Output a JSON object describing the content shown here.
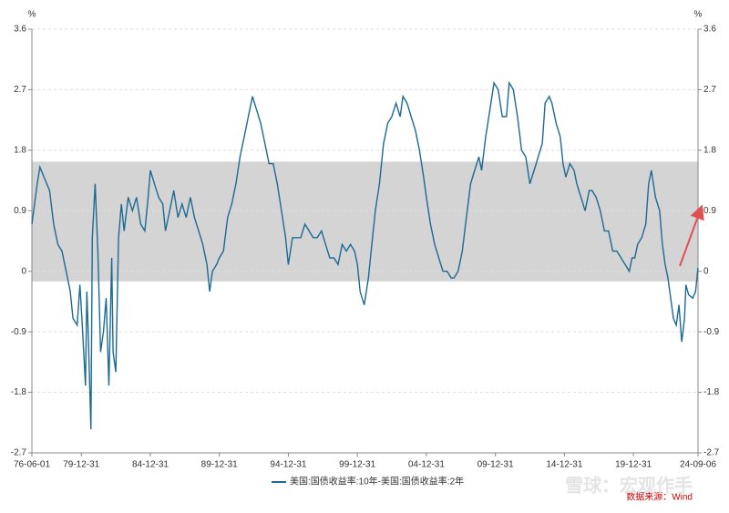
{
  "chart_data": {
    "type": "line",
    "y_unit": "%",
    "legend": "bottom",
    "source": "数据来源：Wind",
    "watermark": "雪球：宏观作手",
    "xlim": [
      1976.42,
      2024.68
    ],
    "xticks": [
      {
        "value": 1976.42,
        "label": "76-06-01"
      },
      {
        "value": 1980.0,
        "label": "79-12-31"
      },
      {
        "value": 1985.0,
        "label": "84-12-31"
      },
      {
        "value": 1990.0,
        "label": "89-12-31"
      },
      {
        "value": 1995.0,
        "label": "94-12-31"
      },
      {
        "value": 2000.0,
        "label": "99-12-31"
      },
      {
        "value": 2005.0,
        "label": "04-12-31"
      },
      {
        "value": 2010.0,
        "label": "09-12-31"
      },
      {
        "value": 2015.0,
        "label": "14-12-31"
      },
      {
        "value": 2020.0,
        "label": "19-12-31"
      },
      {
        "value": 2024.68,
        "label": "24-09-06"
      }
    ],
    "ylim": [
      -2.7,
      3.6
    ],
    "yticks": [
      3.6,
      2.7,
      1.8,
      0.9,
      0,
      -0.9,
      -1.8,
      -2.7
    ],
    "grid": true,
    "band": [
      -0.15,
      1.63
    ],
    "band_color": "#d4d4d4",
    "x": [
      1976.42,
      1976.8,
      1977.0,
      1977.3,
      1977.7,
      1978.0,
      1978.3,
      1978.6,
      1978.9,
      1979.2,
      1979.4,
      1979.7,
      1979.9,
      1980.1,
      1980.3,
      1980.4,
      1980.5,
      1980.7,
      1980.8,
      1981.0,
      1981.2,
      1981.4,
      1981.6,
      1981.8,
      1982.0,
      1982.2,
      1982.3,
      1982.5,
      1982.7,
      1982.9,
      1983.1,
      1983.4,
      1983.7,
      1984.0,
      1984.3,
      1984.6,
      1984.8,
      1985.0,
      1985.3,
      1985.6,
      1985.9,
      1986.1,
      1986.4,
      1986.7,
      1987.0,
      1987.3,
      1987.6,
      1987.9,
      1988.2,
      1988.5,
      1988.8,
      1989.1,
      1989.3,
      1989.5,
      1989.8,
      1990.0,
      1990.3,
      1990.6,
      1990.9,
      1991.2,
      1991.5,
      1991.8,
      1992.1,
      1992.4,
      1992.7,
      1993.0,
      1993.3,
      1993.6,
      1993.9,
      1994.2,
      1994.5,
      1994.8,
      1995.0,
      1995.3,
      1995.6,
      1995.9,
      1996.2,
      1996.5,
      1996.8,
      1997.1,
      1997.4,
      1997.7,
      1998.0,
      1998.3,
      1998.6,
      1998.9,
      1999.2,
      1999.5,
      1999.8,
      2000.0,
      2000.2,
      2000.5,
      2000.8,
      2001.0,
      2001.3,
      2001.6,
      2001.9,
      2002.2,
      2002.5,
      2002.8,
      2003.1,
      2003.3,
      2003.6,
      2003.9,
      2004.2,
      2004.5,
      2004.8,
      2005.0,
      2005.3,
      2005.6,
      2005.9,
      2006.2,
      2006.5,
      2006.8,
      2007.0,
      2007.3,
      2007.6,
      2007.9,
      2008.2,
      2008.5,
      2008.8,
      2009.0,
      2009.3,
      2009.6,
      2009.9,
      2010.2,
      2010.5,
      2010.8,
      2011.0,
      2011.3,
      2011.6,
      2011.9,
      2012.2,
      2012.5,
      2012.8,
      2013.1,
      2013.4,
      2013.6,
      2013.9,
      2014.1,
      2014.4,
      2014.7,
      2014.9,
      2015.1,
      2015.4,
      2015.7,
      2015.9,
      2016.2,
      2016.5,
      2016.8,
      2017.0,
      2017.3,
      2017.6,
      2017.9,
      2018.2,
      2018.5,
      2018.8,
      2019.1,
      2019.4,
      2019.7,
      2019.9,
      2020.1,
      2020.3,
      2020.6,
      2020.9,
      2021.1,
      2021.3,
      2021.6,
      2021.9,
      2022.1,
      2022.3,
      2022.5,
      2022.7,
      2022.9,
      2023.1,
      2023.3,
      2023.5,
      2023.7,
      2023.8,
      2024.0,
      2024.3,
      2024.5,
      2024.68
    ],
    "series": [
      {
        "name": "美国:国债收益率:10年-美国:国债收益率:2年",
        "color": "#1c6a93",
        "values": [
          0.7,
          1.3,
          1.55,
          1.4,
          1.2,
          0.7,
          0.4,
          0.3,
          0.0,
          -0.3,
          -0.7,
          -0.8,
          -0.2,
          -0.9,
          -1.7,
          -0.3,
          -0.9,
          -2.35,
          0.5,
          1.3,
          0.3,
          -1.2,
          -0.9,
          -0.4,
          -1.7,
          0.2,
          -1.2,
          -1.5,
          0.5,
          1.0,
          0.6,
          1.1,
          0.9,
          1.1,
          0.7,
          0.6,
          1.0,
          1.5,
          1.3,
          1.1,
          1.0,
          0.6,
          0.9,
          1.2,
          0.8,
          1.0,
          0.8,
          1.1,
          0.8,
          0.6,
          0.4,
          0.1,
          -0.3,
          0.0,
          0.1,
          0.2,
          0.3,
          0.8,
          1.0,
          1.3,
          1.7,
          2.0,
          2.3,
          2.6,
          2.4,
          2.2,
          1.9,
          1.6,
          1.6,
          1.3,
          0.9,
          0.5,
          0.1,
          0.5,
          0.5,
          0.5,
          0.7,
          0.6,
          0.5,
          0.5,
          0.6,
          0.4,
          0.2,
          0.2,
          0.1,
          0.4,
          0.3,
          0.4,
          0.3,
          0.1,
          -0.3,
          -0.5,
          -0.1,
          0.3,
          0.9,
          1.3,
          1.9,
          2.2,
          2.3,
          2.5,
          2.3,
          2.6,
          2.5,
          2.3,
          2.1,
          1.8,
          1.4,
          1.1,
          0.7,
          0.4,
          0.2,
          0.0,
          0.0,
          -0.1,
          -0.1,
          0.0,
          0.3,
          0.8,
          1.3,
          1.5,
          1.7,
          1.5,
          2.0,
          2.4,
          2.8,
          2.7,
          2.3,
          2.3,
          2.8,
          2.7,
          2.3,
          1.8,
          1.7,
          1.3,
          1.5,
          1.7,
          1.9,
          2.5,
          2.6,
          2.5,
          2.2,
          2.0,
          1.6,
          1.4,
          1.6,
          1.5,
          1.3,
          1.1,
          0.9,
          1.2,
          1.2,
          1.1,
          0.9,
          0.6,
          0.6,
          0.3,
          0.3,
          0.2,
          0.1,
          0.0,
          0.2,
          0.2,
          0.4,
          0.5,
          0.7,
          1.3,
          1.5,
          1.1,
          0.9,
          0.4,
          0.1,
          -0.1,
          -0.4,
          -0.7,
          -0.8,
          -0.5,
          -1.05,
          -0.7,
          -0.2,
          -0.35,
          -0.4,
          -0.3,
          0.05
        ]
      }
    ]
  }
}
